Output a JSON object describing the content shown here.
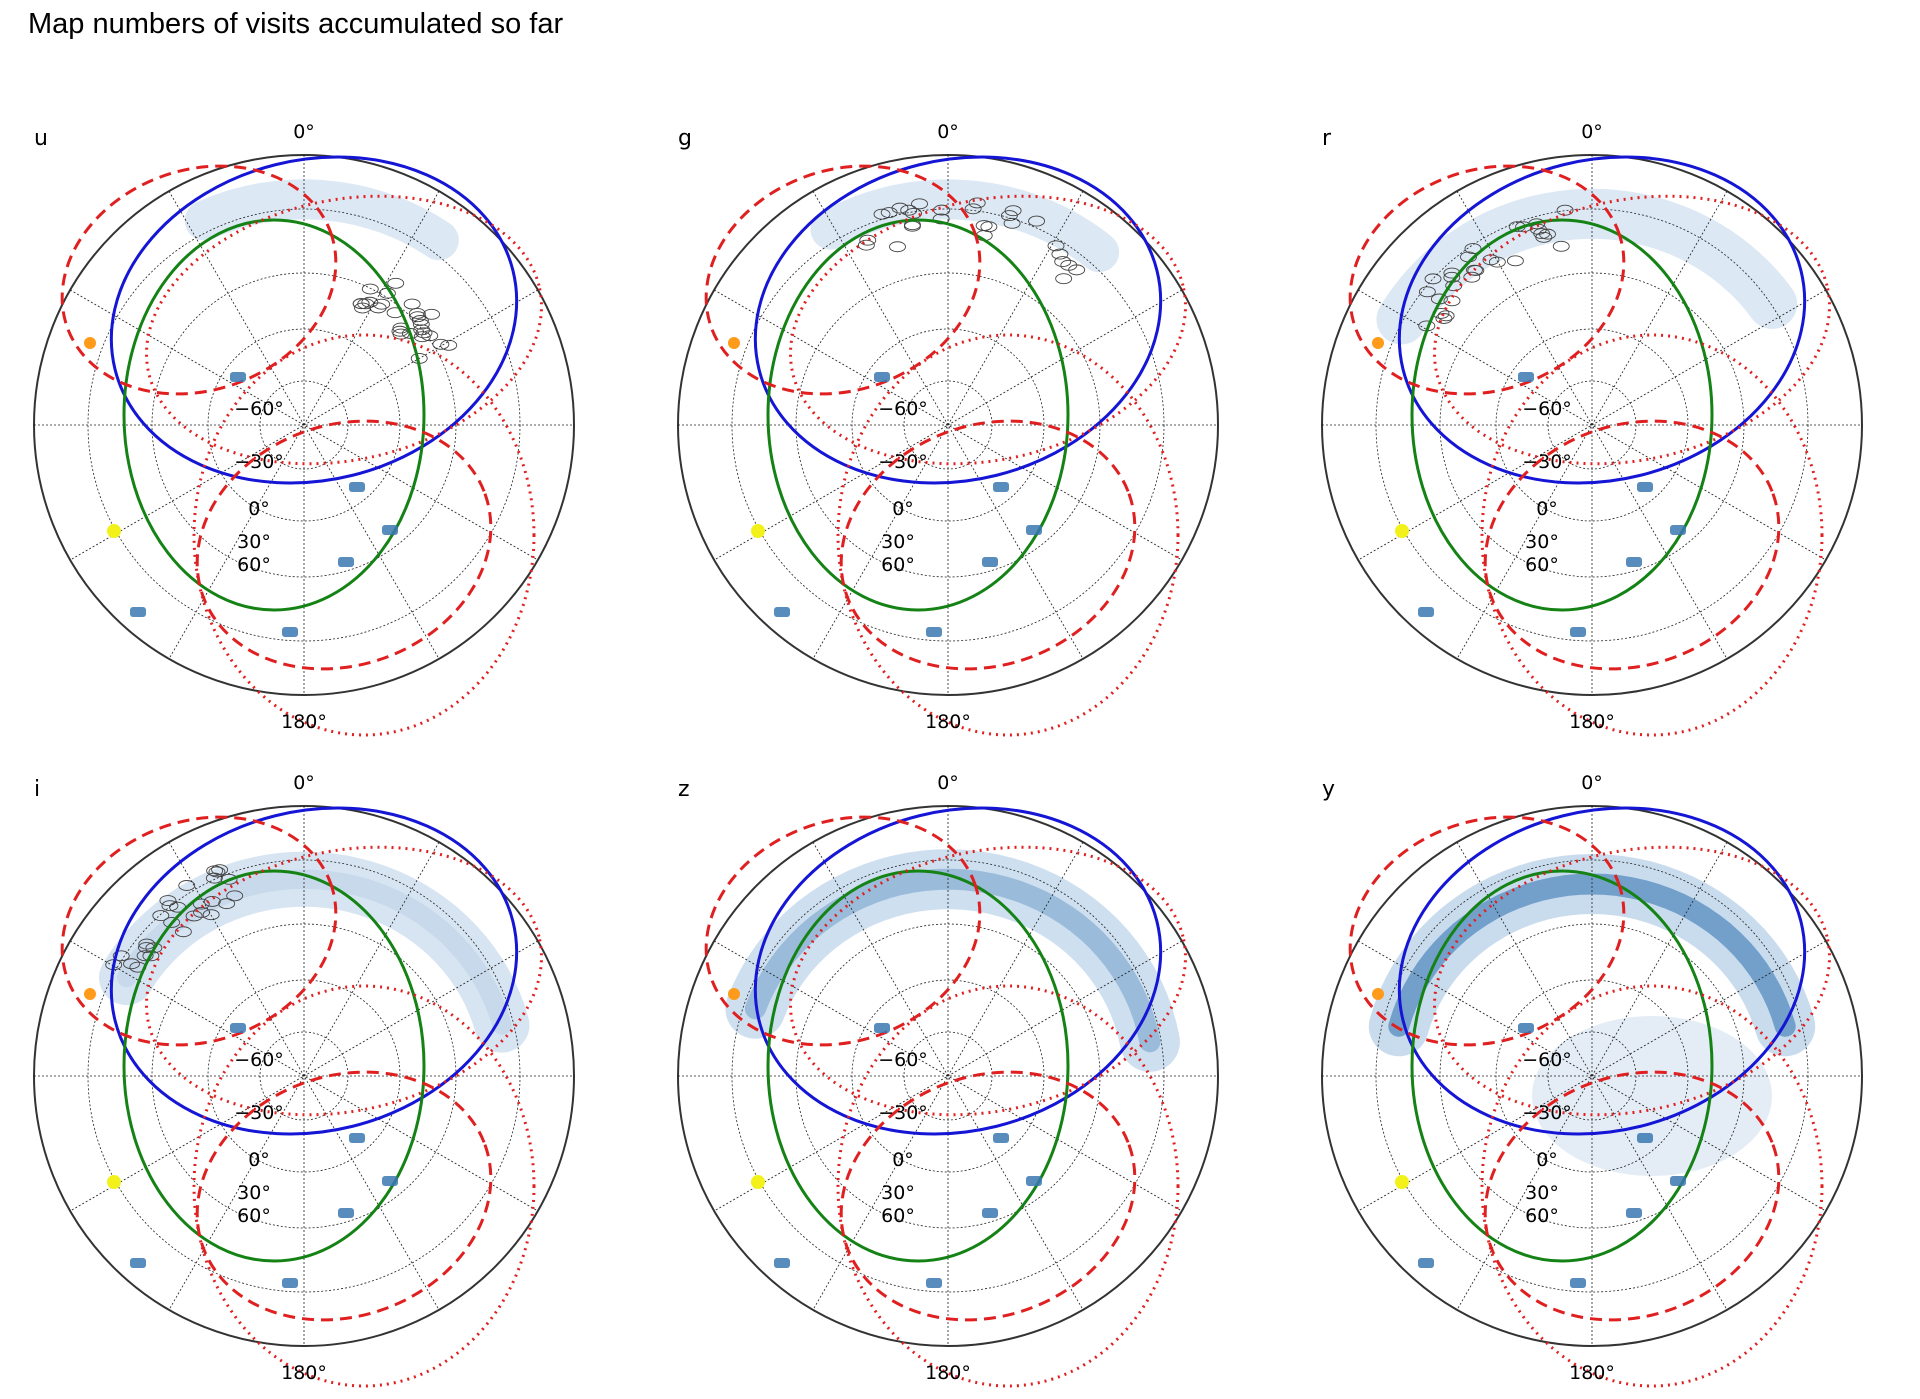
{
  "header": {
    "title": "Map numbers of visits accumulated so far"
  },
  "colors": {
    "blue_circle": "#1515d6",
    "green_circle": "#148214",
    "red_dashed": "#e02020",
    "red_dotted": "#e02020",
    "visits_light": "#c9dcee",
    "visits_dark": "#3a78b2",
    "sun_marker": "#ff9a1a",
    "moon_marker": "#f2f21a"
  },
  "chart_data": [
    {
      "type": "heatmap",
      "projection": "polar (orthographic sky map)",
      "filter": "u",
      "angular_tick_top": "0°",
      "angular_tick_bottom": "180°",
      "radial_ticks": [
        "−60°",
        "−30°",
        "0°",
        "30°",
        "60°"
      ],
      "grid": true,
      "overlays": [
        "blue solid circle",
        "green solid circle",
        "red dashed circle",
        "red dotted circle",
        "orange marker",
        "yellow marker"
      ],
      "visit_coverage": "faint arc on right side with open-circle fields"
    },
    {
      "type": "heatmap",
      "projection": "polar (orthographic sky map)",
      "filter": "g",
      "angular_tick_top": "0°",
      "angular_tick_bottom": "180°",
      "radial_ticks": [
        "−60°",
        "−30°",
        "0°",
        "30°",
        "60°"
      ],
      "grid": true,
      "overlays": [
        "blue solid circle",
        "green solid circle",
        "red dashed circle",
        "red dotted circle",
        "orange marker",
        "yellow marker"
      ],
      "visit_coverage": "faint arc upper-right with open-circle fields"
    },
    {
      "type": "heatmap",
      "projection": "polar (orthographic sky map)",
      "filter": "r",
      "angular_tick_top": "0°",
      "angular_tick_bottom": "180°",
      "radial_ticks": [
        "−60°",
        "−30°",
        "0°",
        "30°",
        "60°"
      ],
      "grid": true,
      "overlays": [
        "blue solid circle",
        "green solid circle",
        "red dashed circle",
        "red dotted circle",
        "orange marker",
        "yellow marker"
      ],
      "visit_coverage": "arc top to right with open-circle fields at top"
    },
    {
      "type": "heatmap",
      "projection": "polar (orthographic sky map)",
      "filter": "i",
      "angular_tick_top": "0°",
      "angular_tick_bottom": "180°",
      "radial_ticks": [
        "−60°",
        "−30°",
        "0°",
        "30°",
        "60°"
      ],
      "grid": true,
      "overlays": [
        "blue solid circle",
        "green solid circle",
        "red dashed circle",
        "red dotted circle",
        "orange marker",
        "yellow marker"
      ],
      "visit_coverage": "arc top to right, light blue, open-circle fields at top"
    },
    {
      "type": "heatmap",
      "projection": "polar (orthographic sky map)",
      "filter": "z",
      "angular_tick_top": "0°",
      "angular_tick_bottom": "180°",
      "radial_ticks": [
        "−60°",
        "−30°",
        "0°",
        "30°",
        "60°"
      ],
      "grid": true,
      "overlays": [
        "blue solid circle",
        "green solid circle",
        "red dashed circle",
        "red dotted circle",
        "orange marker",
        "yellow marker"
      ],
      "visit_coverage": "blue arc from top around right side"
    },
    {
      "type": "heatmap",
      "projection": "polar (orthographic sky map)",
      "filter": "y",
      "angular_tick_top": "0°",
      "angular_tick_bottom": "180°",
      "radial_ticks": [
        "−60°",
        "−30°",
        "0°",
        "30°",
        "60°"
      ],
      "grid": true,
      "overlays": [
        "blue solid circle",
        "green solid circle",
        "red dashed circle",
        "red dotted circle",
        "orange marker",
        "yellow marker"
      ],
      "visit_coverage": "darker blue arc top to right plus faint central region"
    }
  ]
}
